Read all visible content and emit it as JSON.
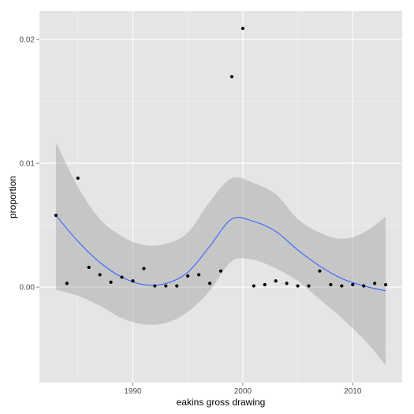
{
  "chart_data": {
    "type": "scatter",
    "xlabel": "eakins gross drawing",
    "ylabel": "proportion",
    "xlim": [
      1981.5,
      2014.5
    ],
    "ylim": [
      -0.0077,
      0.0223
    ],
    "x_ticks": [
      1990,
      2000,
      2010
    ],
    "y_ticks": [
      0.0,
      0.01,
      0.02
    ],
    "y_tick_labels": [
      "0.00",
      "0.01",
      "0.02"
    ],
    "grid": true,
    "legend": "none",
    "points": [
      {
        "x": 1983,
        "y": 0.0058
      },
      {
        "x": 1984,
        "y": 0.0003
      },
      {
        "x": 1985,
        "y": 0.0088
      },
      {
        "x": 1986,
        "y": 0.0016
      },
      {
        "x": 1987,
        "y": 0.001
      },
      {
        "x": 1988,
        "y": 0.0004
      },
      {
        "x": 1989,
        "y": 0.0008
      },
      {
        "x": 1990,
        "y": 0.0005
      },
      {
        "x": 1991,
        "y": 0.0015
      },
      {
        "x": 1992,
        "y": 0.0001
      },
      {
        "x": 1993,
        "y": 0.0001
      },
      {
        "x": 1994,
        "y": 0.0001
      },
      {
        "x": 1995,
        "y": 0.0009
      },
      {
        "x": 1996,
        "y": 0.001
      },
      {
        "x": 1997,
        "y": 0.0003
      },
      {
        "x": 1998,
        "y": 0.0013
      },
      {
        "x": 1999,
        "y": 0.017
      },
      {
        "x": 2000,
        "y": 0.0209
      },
      {
        "x": 2001,
        "y": 0.0001
      },
      {
        "x": 2002,
        "y": 0.0002
      },
      {
        "x": 2003,
        "y": 0.0005
      },
      {
        "x": 2004,
        "y": 0.0003
      },
      {
        "x": 2005,
        "y": 0.0001
      },
      {
        "x": 2006,
        "y": 0.0001
      },
      {
        "x": 2007,
        "y": 0.0013
      },
      {
        "x": 2008,
        "y": 0.0002
      },
      {
        "x": 2009,
        "y": 0.0001
      },
      {
        "x": 2010,
        "y": 0.0002
      },
      {
        "x": 2011,
        "y": 0.0001
      },
      {
        "x": 2012,
        "y": 0.0003
      },
      {
        "x": 2013,
        "y": 0.0002
      }
    ],
    "smooth": {
      "x": [
        1983,
        1985,
        1987,
        1989,
        1991,
        1993,
        1995,
        1997,
        1999,
        2001,
        2003,
        2005,
        2007,
        2009,
        2011,
        2013
      ],
      "y": [
        0.0058,
        0.0037,
        0.002,
        0.0008,
        0.0002,
        0.0003,
        0.0012,
        0.0033,
        0.0055,
        0.0053,
        0.0045,
        0.003,
        0.0017,
        0.0007,
        0.0001,
        -0.0003
      ],
      "lower": [
        -0.0002,
        -0.0007,
        -0.0015,
        -0.0025,
        -0.003,
        -0.0029,
        -0.002,
        -0.0003,
        0.0021,
        0.0022,
        0.0015,
        0.0005,
        -0.001,
        -0.0025,
        -0.0042,
        -0.0063
      ],
      "upper": [
        0.0117,
        0.0081,
        0.0055,
        0.0041,
        0.0034,
        0.0035,
        0.0044,
        0.0069,
        0.0088,
        0.0084,
        0.0075,
        0.0055,
        0.0044,
        0.0039,
        0.0044,
        0.0057
      ]
    },
    "colors": {
      "panel": "#e5e5e5",
      "grid_major": "#ffffff",
      "grid_minor": "#f2f2f2",
      "point": "#000000",
      "line": "#3366ff",
      "ribbon": "#999999"
    }
  }
}
